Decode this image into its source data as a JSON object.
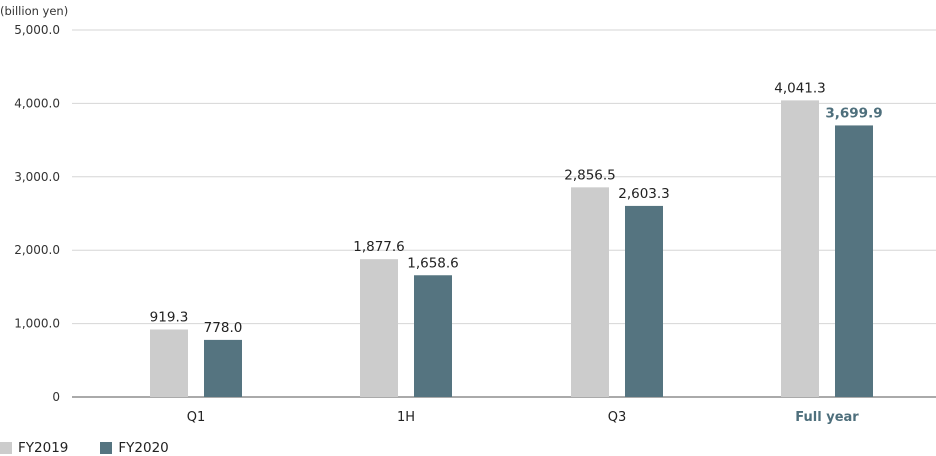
{
  "chart_data": {
    "type": "bar",
    "unit_label": "(billion yen)",
    "categories": [
      "Q1",
      "1H",
      "Q3",
      "Full year"
    ],
    "highlight_category": "Full year",
    "series": [
      {
        "name": "FY2019",
        "color": "#cccccc",
        "values": [
          919.3,
          1877.6,
          2856.5,
          4041.3
        ],
        "labels": [
          "919.3",
          "1,877.6",
          "2,856.5",
          "4,041.3"
        ]
      },
      {
        "name": "FY2020",
        "color": "#557480",
        "values": [
          778.0,
          1658.6,
          2603.3,
          3699.9
        ],
        "labels": [
          "778.0",
          "1,658.6",
          "2,603.3",
          "3,699.9"
        ]
      }
    ],
    "ylim": [
      0,
      5000
    ],
    "yticks": [
      0,
      1000,
      2000,
      3000,
      4000,
      5000
    ],
    "ytick_labels": [
      "0",
      "1,000.0",
      "2,000.0",
      "3,000.0",
      "4,000.0",
      "5,000.0"
    ],
    "grid": true,
    "legend_position": "bottom-left"
  }
}
